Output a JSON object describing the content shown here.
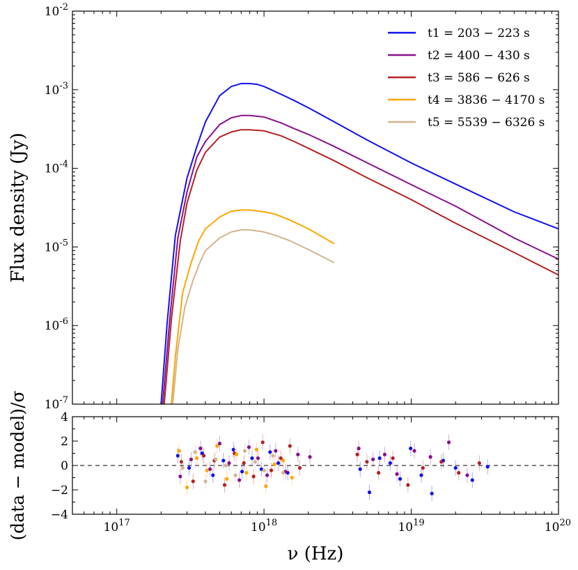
{
  "chart_data": [
    {
      "panel": "spectrum",
      "type": "line",
      "xscale": "log",
      "yscale": "log",
      "xlim": [
        5e+16,
        1e+20
      ],
      "ylim": [
        1e-07,
        0.01
      ],
      "ylabel": "Flux density (Jy)",
      "y_ticks": [
        {
          "value": 1e-07,
          "label": "10^-7"
        },
        {
          "value": 1e-06,
          "label": "10^-6"
        },
        {
          "value": 1e-05,
          "label": "10^-5"
        },
        {
          "value": 0.0001,
          "label": "10^-4"
        },
        {
          "value": 0.001,
          "label": "10^-3"
        },
        {
          "value": 0.01,
          "label": "10^-2"
        }
      ],
      "legend_placement": "top-right",
      "series": [
        {
          "name": "t1 = 203 − 223 s",
          "color": "#1010ee",
          "x": [
            2e+17,
            2.2e+17,
            2.5e+17,
            3e+17,
            3.5e+17,
            4e+17,
            5e+17,
            6e+17,
            7e+17,
            8e+17,
            9e+17,
            1e+18,
            1.3e+18,
            1.6e+18,
            2e+18,
            3e+18,
            5e+18,
            1e+19,
            2e+19,
            5e+19,
            1e+20
          ],
          "values": [
            1e-07,
            1.1e-06,
            1.4e-05,
            7.5e-05,
            0.00019,
            0.00039,
            0.00084,
            0.0011,
            0.0012,
            0.0012,
            0.00117,
            0.0011,
            0.00088,
            0.00073,
            0.00059,
            0.00039,
            0.00023,
            0.000117,
            6.3e-05,
            2.8e-05,
            1.7e-05
          ]
        },
        {
          "name": "t2 = 400 − 430 s",
          "color": "#88108c",
          "x": [
            2.05e+17,
            2.3e+17,
            2.6e+17,
            3e+17,
            3.5e+17,
            4e+17,
            5e+17,
            6e+17,
            7e+17,
            8e+17,
            1e+18,
            1.3e+18,
            1.6e+18,
            2e+18,
            3e+18,
            5e+18,
            1e+19,
            2e+19,
            5e+19,
            1e+20
          ],
          "values": [
            1e-07,
            1.3e-06,
            1.3e-05,
            5e-05,
            0.00014,
            0.00022,
            0.00036,
            0.00044,
            0.00047,
            0.00047,
            0.00045,
            0.00038,
            0.00032,
            0.00027,
            0.00019,
            0.000118,
            6.2e-05,
            3.3e-05,
            1.3e-05,
            7e-06
          ]
        },
        {
          "name": "t3 = 586 − 626 s",
          "color": "#b22222",
          "x": [
            2.1e+17,
            2.35e+17,
            2.7e+17,
            3e+17,
            3.5e+17,
            4e+17,
            5e+17,
            6e+17,
            7e+17,
            8e+17,
            1e+18,
            1.3e+18,
            1.6e+18,
            2e+18,
            3e+18,
            5e+18,
            1e+19,
            2e+19,
            5e+19,
            1e+20
          ],
          "values": [
            1e-07,
            1.2e-06,
            1.2e-05,
            3.6e-05,
            9.5e-05,
            0.00016,
            0.00025,
            0.00029,
            0.00031,
            0.00031,
            0.0003,
            0.00026,
            0.00022,
            0.00018,
            0.000125,
            7.6e-05,
            4e-05,
            2e-05,
            8.5e-06,
            4.4e-06
          ]
        },
        {
          "name": "t4 = 3836 − 4170 s",
          "color": "#ffa500",
          "x": [
            2.35e+17,
            2.5e+17,
            2.8e+17,
            3.2e+17,
            3.6e+17,
            4e+17,
            5e+17,
            6e+17,
            7e+17,
            8e+17,
            1e+18,
            1.2e+18,
            1.5e+18,
            2e+18,
            3e+18
          ],
          "values": [
            1e-07,
            4e-07,
            2.6e-06,
            6.3e-06,
            1.2e-05,
            1.7e-05,
            2.4e-05,
            2.85e-05,
            2.95e-05,
            2.95e-05,
            2.8e-05,
            2.6e-05,
            2.2e-05,
            1.7e-05,
            1.1e-05
          ]
        },
        {
          "name": "t5 = 5539 − 6326 s",
          "color": "#d2b48c",
          "x": [
            2.4e+17,
            2.6e+17,
            2.9e+17,
            3.3e+17,
            3.7e+17,
            4e+17,
            5e+17,
            6e+17,
            7e+17,
            8e+17,
            1e+18,
            1.2e+18,
            1.5e+18,
            2e+18,
            3e+18
          ],
          "values": [
            1e-07,
            5e-07,
            1.7e-06,
            3.8e-06,
            6.6e-06,
            9e-06,
            1.3e-05,
            1.55e-05,
            1.65e-05,
            1.65e-05,
            1.55e-05,
            1.4e-05,
            1.2e-05,
            9.3e-06,
            6.3e-06
          ]
        }
      ]
    },
    {
      "panel": "residuals",
      "type": "scatter",
      "xscale": "log",
      "xlim": [
        5e+16,
        1e+20
      ],
      "ylim": [
        -4,
        4
      ],
      "xlabel": "ν (Hz)",
      "ylabel": "(data − model)/σ",
      "reference_line": {
        "y": 0,
        "style": "dashed"
      },
      "x_ticks": [
        {
          "value": 1e+17,
          "label": "10^17"
        },
        {
          "value": 1e+18,
          "label": "10^18"
        },
        {
          "value": 1e+19,
          "label": "10^19"
        },
        {
          "value": 1e+20,
          "label": "10^20"
        }
      ],
      "y_ticks": [
        {
          "value": -4,
          "label": "−4"
        },
        {
          "value": -2,
          "label": "−2"
        },
        {
          "value": 0,
          "label": "0"
        },
        {
          "value": 2,
          "label": "2"
        },
        {
          "value": 4,
          "label": "4"
        }
      ],
      "series": [
        {
          "name": "t1 = 203 − 223 s",
          "color": "#1010ee",
          "x": [
            2.6e+17,
            3.1e+17,
            3.8e+17,
            4.5e+17,
            5.3e+17,
            6.2e+17,
            7.1e+17,
            8.3e+17,
            9.6e+17,
            1.1e+18,
            1.25e+18,
            1.45e+18,
            4.5e+18,
            5.2e+18,
            6.1e+18,
            7.2e+18,
            8.4e+18,
            9.9e+18,
            1.17e+19,
            1.38e+19,
            1.65e+19,
            2e+19,
            2.6e+19,
            3.3e+19
          ],
          "values": [
            0.8,
            -0.2,
            1.0,
            -0.8,
            0.4,
            1.3,
            -0.5,
            0.6,
            -0.3,
            1.1,
            0.2,
            -0.6,
            -0.3,
            -2.2,
            0.6,
            0.2,
            -1.1,
            1.4,
            -0.8,
            -2.3,
            0.4,
            -0.2,
            -1.2,
            -0.1
          ]
        },
        {
          "name": "t2 = 400 − 430 s",
          "color": "#88108c",
          "x": [
            2.7e+17,
            3.2e+17,
            3.7e+17,
            4.3e+17,
            5e+17,
            5.8e+17,
            6.8e+17,
            7.9e+17,
            9.1e+17,
            1.05e+18,
            1.2e+18,
            1.4e+18,
            1.7e+18,
            2.05e+18,
            4.4e+18,
            5.5e+18,
            6.6e+18,
            8e+18,
            1.05e+19,
            1.35e+19,
            1.8e+19,
            2.4e+19
          ],
          "values": [
            -0.9,
            0.5,
            1.4,
            -0.3,
            1.8,
            0.2,
            -1.2,
            1.5,
            0.6,
            -0.8,
            1.2,
            -0.5,
            0.9,
            0.7,
            1.4,
            0.5,
            0.9,
            -0.7,
            1.2,
            0.7,
            1.9,
            -0.8
          ]
        },
        {
          "name": "t3 = 586 − 626 s",
          "color": "#b22222",
          "x": [
            2.75e+17,
            3.3e+17,
            3.9e+17,
            4.6e+17,
            5.4e+17,
            6.3e+17,
            7.3e+17,
            8.5e+17,
            9.8e+17,
            1.12e+18,
            1.3e+18,
            1.5e+18,
            1.75e+18,
            4.3e+18,
            5e+18,
            6e+18,
            7.5e+18,
            9.5e+18,
            1.2e+19,
            1.6e+19,
            2.1e+19,
            2.9e+19
          ],
          "values": [
            0.3,
            -1.3,
            0.8,
            0.4,
            -1.6,
            1.0,
            0.2,
            -0.9,
            1.9,
            -0.4,
            0.6,
            1.6,
            -0.2,
            0.9,
            0.3,
            -0.6,
            0.6,
            -1.6,
            -0.2,
            0.3,
            -0.6,
            0.2
          ]
        },
        {
          "name": "t4 = 3836 − 4170 s",
          "color": "#ffa500",
          "x": [
            2.65e+17,
            3e+17,
            3.5e+17,
            4.1e+17,
            4.8e+17,
            5.6e+17,
            6.5e+17,
            7.6e+17,
            8.9e+17,
            1.03e+18,
            1.18e+18,
            1.35e+18,
            1.55e+18
          ],
          "values": [
            1.2,
            -1.8,
            0.6,
            -0.4,
            1.6,
            -1.1,
            0.9,
            -0.6,
            1.3,
            -1.7,
            0.1,
            0.4,
            -1.0
          ]
        },
        {
          "name": "t5 = 5539 − 6326 s",
          "color": "#d2b48c",
          "x": [
            2.8e+17,
            3.4e+17,
            4e+17,
            4.7e+17,
            5.5e+17,
            6.4e+17,
            7.4e+17,
            8.7e+17,
            1e+18,
            1.15e+18,
            1.35e+18
          ],
          "values": [
            -0.2,
            1.1,
            -1.3,
            0.5,
            0.0,
            -0.8,
            1.2,
            0.3,
            -0.4,
            0.8,
            -0.6
          ]
        }
      ]
    }
  ]
}
